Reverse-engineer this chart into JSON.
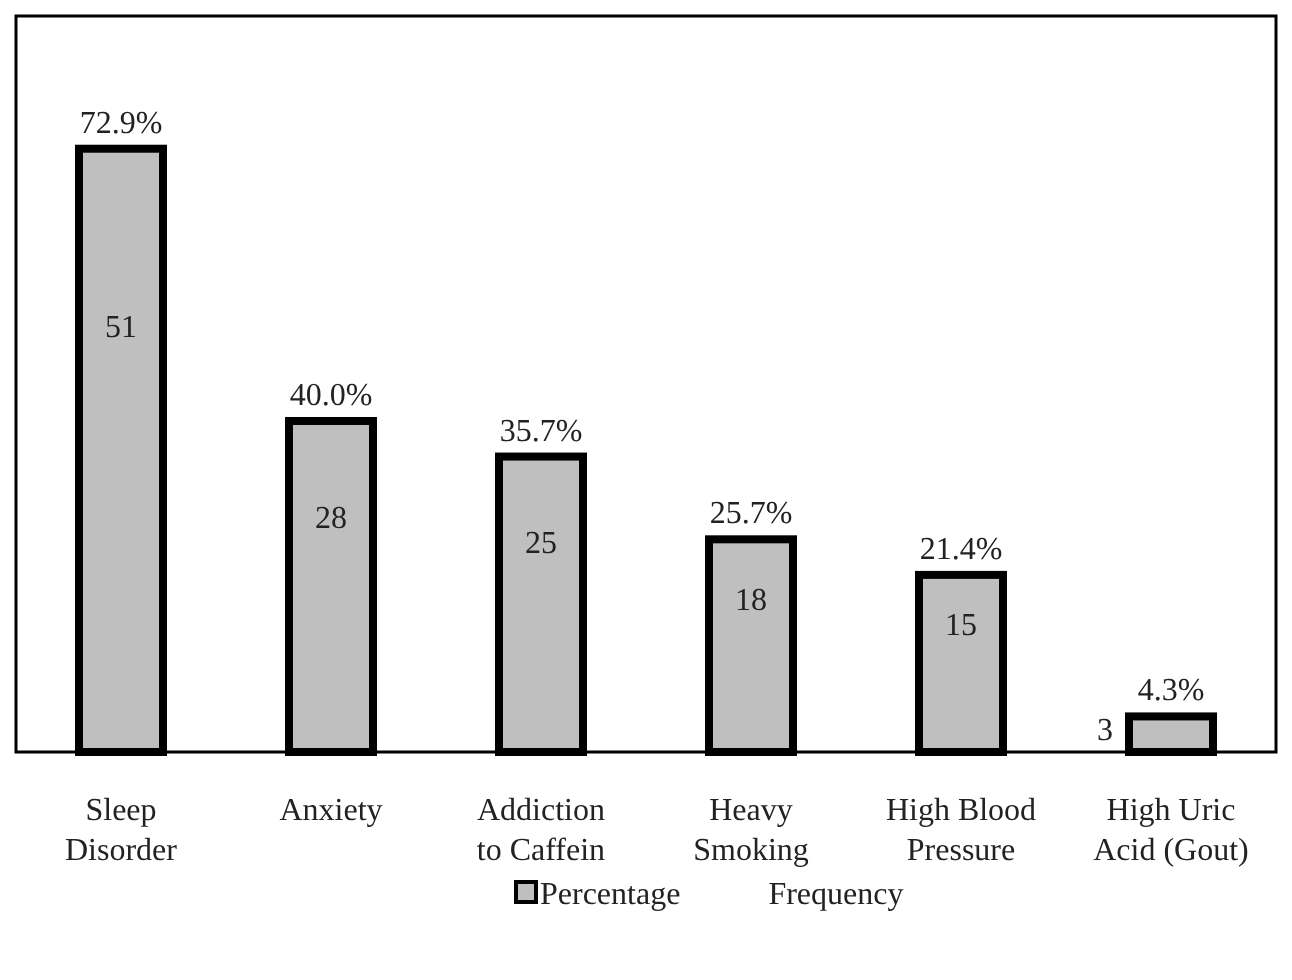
{
  "chart_data": {
    "type": "bar",
    "categories": [
      "Sleep Disorder",
      "Anxiety",
      "Addiction to Caffein",
      "Heavy Smoking",
      "High Blood Pressure",
      "High Uric Acid (Gout)"
    ],
    "series": [
      {
        "name": "Percentage",
        "color": "#bfbfbf",
        "values": [
          72.9,
          40.0,
          35.7,
          25.7,
          21.4,
          4.3
        ],
        "value_labels": [
          "72.9%",
          "40.0%",
          "35.7%",
          "25.7%",
          "21.4%",
          "4.3%"
        ]
      }
    ],
    "annotations": [
      "51",
      "28",
      "25",
      "18",
      "15",
      "3",
      "Frequency"
    ],
    "legend": "bottom",
    "grid": false
  }
}
